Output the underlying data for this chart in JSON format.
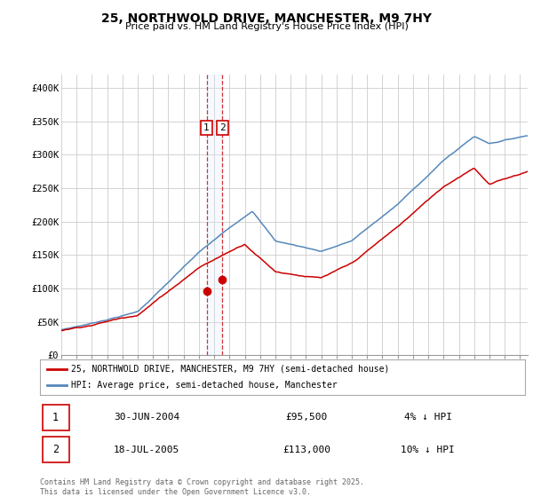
{
  "title": "25, NORTHWOLD DRIVE, MANCHESTER, M9 7HY",
  "subtitle": "Price paid vs. HM Land Registry's House Price Index (HPI)",
  "ylabel_ticks": [
    "£0",
    "£50K",
    "£100K",
    "£150K",
    "£200K",
    "£250K",
    "£300K",
    "£350K",
    "£400K"
  ],
  "ytick_values": [
    0,
    50000,
    100000,
    150000,
    200000,
    250000,
    300000,
    350000,
    400000
  ],
  "ylim": [
    0,
    420000
  ],
  "xlim_start": 1995.0,
  "xlim_end": 2025.5,
  "sale1_x": 2004.5,
  "sale1_y": 95500,
  "sale2_x": 2005.54,
  "sale2_y": 113000,
  "sale1_label": "30-JUN-2004",
  "sale1_price": "£95,500",
  "sale1_hpi": "4% ↓ HPI",
  "sale2_label": "18-JUL-2005",
  "sale2_price": "£113,000",
  "sale2_hpi": "10% ↓ HPI",
  "line1_color": "#cc0000",
  "line2_color": "#5588bb",
  "vline_color": "#cc0000",
  "vfill_color": "#ddeeff",
  "background_color": "#ffffff",
  "grid_color": "#cccccc",
  "legend1_text": "25, NORTHWOLD DRIVE, MANCHESTER, M9 7HY (semi-detached house)",
  "legend2_text": "HPI: Average price, semi-detached house, Manchester",
  "footer": "Contains HM Land Registry data © Crown copyright and database right 2025.\nThis data is licensed under the Open Government Licence v3.0."
}
